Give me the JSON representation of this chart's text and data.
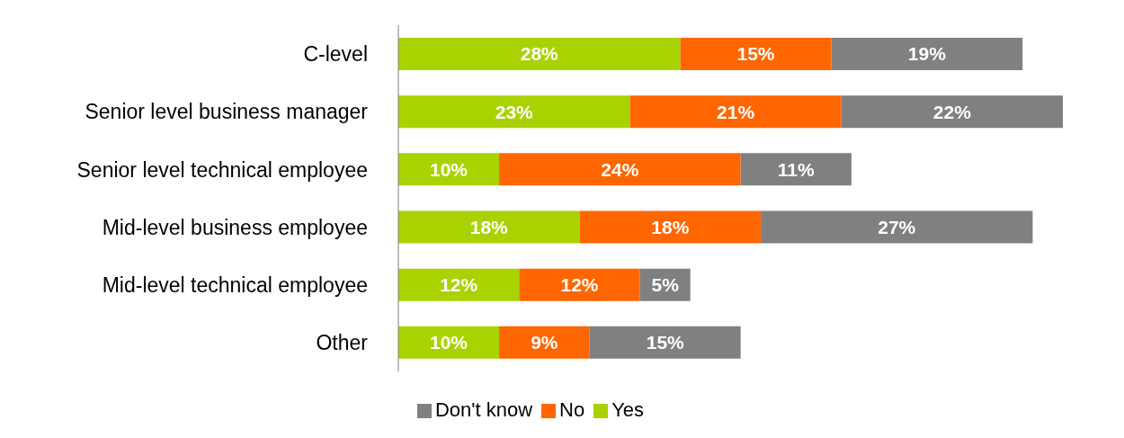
{
  "chart_data": {
    "type": "bar",
    "orientation": "horizontal",
    "stacked": true,
    "legend": "bottom",
    "grid": false,
    "categories": [
      "C-level",
      "Senior level business manager",
      "Senior level technical employee",
      "Mid-level business employee",
      "Mid-level technical employee",
      "Other"
    ],
    "series": [
      {
        "name": "Yes",
        "color": "#a9d300",
        "values": [
          28,
          23,
          10,
          18,
          12,
          10
        ],
        "value_labels": [
          "28%",
          "23%",
          "10%",
          "18%",
          "12%",
          "10%"
        ]
      },
      {
        "name": "No",
        "color": "#ff6600",
        "values": [
          15,
          21,
          24,
          18,
          12,
          9
        ],
        "value_labels": [
          "15%",
          "21%",
          "24%",
          "18%",
          "12%",
          "9%"
        ]
      },
      {
        "name": "Don't know",
        "color": "#808080",
        "values": [
          19,
          22,
          11,
          27,
          5,
          15
        ],
        "value_labels": [
          "19%",
          "22%",
          "11%",
          "27%",
          "5%",
          "15%"
        ]
      }
    ]
  }
}
